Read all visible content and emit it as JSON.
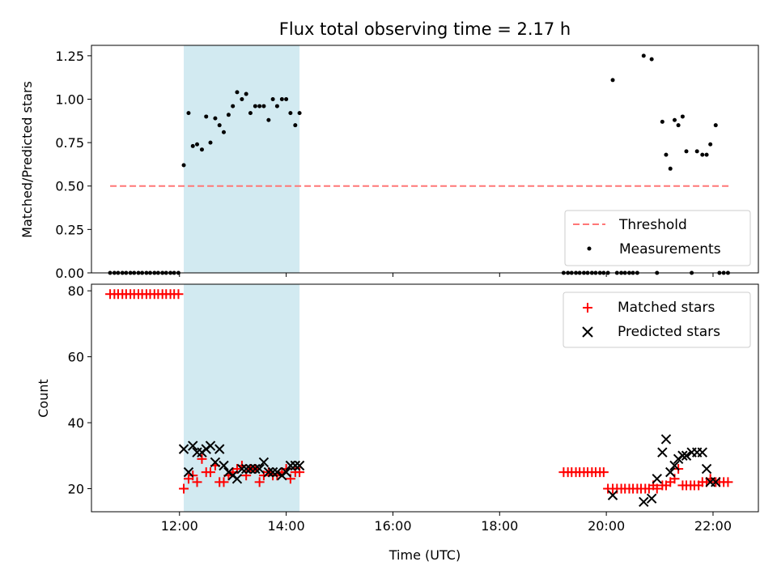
{
  "chart_data": [
    {
      "type": "scatter",
      "title": "Flux total observing time = 2.17 h",
      "xlabel": "",
      "ylabel": "Matched/Predicted stars",
      "xlim": [
        10.35,
        22.85
      ],
      "ylim": [
        0,
        1.31
      ],
      "yticks": [
        0,
        0.25,
        0.5,
        0.75,
        1.0,
        1.25
      ],
      "ytick_labels": [
        "0.00",
        "0.25",
        "0.50",
        "0.75",
        "1.00",
        "1.25"
      ],
      "grid": false,
      "legend_position": "lower right",
      "highlight_span": [
        12.08,
        14.25
      ],
      "highlight_color": "#add8e6",
      "threshold": {
        "name": "Threshold",
        "value": 0.5,
        "x_range": [
          10.7,
          22.3
        ],
        "color": "#ff7777"
      },
      "measurements": {
        "name": "Measurements",
        "color": "#000000",
        "x": [
          10.7,
          10.78,
          10.85,
          10.93,
          11.0,
          11.08,
          11.15,
          11.23,
          11.3,
          11.38,
          11.45,
          11.53,
          11.6,
          11.68,
          11.75,
          11.83,
          11.9,
          11.98,
          12.08,
          12.17,
          12.25,
          12.33,
          12.42,
          12.5,
          12.58,
          12.67,
          12.75,
          12.83,
          12.92,
          13.0,
          13.08,
          13.17,
          13.25,
          13.33,
          13.42,
          13.5,
          13.58,
          13.67,
          13.75,
          13.83,
          13.92,
          14.0,
          14.08,
          14.17,
          14.25,
          19.2,
          19.28,
          19.35,
          19.43,
          19.5,
          19.58,
          19.65,
          19.73,
          19.8,
          19.88,
          19.95,
          20.03,
          20.12,
          20.2,
          20.28,
          20.35,
          20.43,
          20.5,
          20.58,
          20.7,
          20.85,
          20.95,
          21.05,
          21.12,
          21.2,
          21.28,
          21.35,
          21.43,
          21.5,
          21.6,
          21.7,
          21.8,
          21.88,
          21.95,
          22.05,
          22.12,
          22.2,
          22.28
        ],
        "y": [
          0,
          0,
          0,
          0,
          0,
          0,
          0,
          0,
          0,
          0,
          0,
          0,
          0,
          0,
          0,
          0,
          0,
          0,
          0.62,
          0.92,
          0.73,
          0.74,
          0.71,
          0.9,
          0.75,
          0.89,
          0.85,
          0.81,
          0.91,
          0.96,
          1.04,
          1.0,
          1.03,
          0.92,
          0.96,
          0.96,
          0.96,
          0.88,
          1.0,
          0.96,
          1.0,
          1.0,
          0.92,
          0.85,
          0.92,
          0,
          0,
          0,
          0,
          0,
          0,
          0,
          0,
          0,
          0,
          0,
          0,
          1.11,
          0,
          0,
          0,
          0,
          0,
          0,
          1.25,
          1.23,
          0,
          0.87,
          0.68,
          0.6,
          0.88,
          0.85,
          0.9,
          0.7,
          0,
          0.7,
          0.68,
          0.68,
          0.74,
          0.85,
          0,
          0,
          0
        ]
      }
    },
    {
      "type": "scatter",
      "title": "",
      "xlabel": "Time (UTC)",
      "ylabel": "Count",
      "xlim": [
        10.35,
        22.85
      ],
      "ylim": [
        13,
        82
      ],
      "xticks": [
        12,
        14,
        16,
        18,
        20,
        22
      ],
      "xtick_labels": [
        "12:00",
        "14:00",
        "16:00",
        "18:00",
        "20:00",
        "22:00"
      ],
      "yticks": [
        20,
        40,
        60,
        80
      ],
      "ytick_labels": [
        "20",
        "40",
        "60",
        "80"
      ],
      "grid": false,
      "legend_position": "upper right",
      "highlight_span": [
        12.08,
        14.25
      ],
      "series": [
        {
          "name": "Matched stars",
          "marker": "plus",
          "color": "#ff0000",
          "x": [
            10.7,
            10.78,
            10.85,
            10.93,
            11.0,
            11.08,
            11.15,
            11.23,
            11.3,
            11.38,
            11.45,
            11.53,
            11.6,
            11.68,
            11.75,
            11.83,
            11.9,
            11.98,
            12.08,
            12.17,
            12.25,
            12.33,
            12.42,
            12.5,
            12.58,
            12.67,
            12.75,
            12.83,
            12.92,
            13.0,
            13.08,
            13.17,
            13.25,
            13.33,
            13.42,
            13.5,
            13.58,
            13.67,
            13.75,
            13.83,
            13.92,
            14.0,
            14.08,
            14.17,
            14.25,
            19.2,
            19.28,
            19.35,
            19.43,
            19.5,
            19.58,
            19.65,
            19.73,
            19.8,
            19.88,
            19.95,
            20.03,
            20.12,
            20.2,
            20.28,
            20.35,
            20.43,
            20.5,
            20.58,
            20.65,
            20.73,
            20.8,
            20.88,
            20.95,
            21.05,
            21.12,
            21.2,
            21.28,
            21.35,
            21.43,
            21.5,
            21.58,
            21.65,
            21.73,
            21.8,
            21.88,
            21.95,
            22.05,
            22.12,
            22.2,
            22.28
          ],
          "y": [
            79,
            79,
            79,
            79,
            79,
            79,
            79,
            79,
            79,
            79,
            79,
            79,
            79,
            79,
            79,
            79,
            79,
            79,
            20,
            23,
            24,
            22,
            29,
            25,
            25,
            27,
            22,
            22,
            24,
            25,
            26,
            27,
            24,
            26,
            26,
            22,
            24,
            25,
            24,
            24,
            25,
            26,
            23,
            25,
            25,
            25,
            25,
            25,
            25,
            25,
            25,
            25,
            25,
            25,
            25,
            25,
            20,
            20,
            20,
            20,
            20,
            20,
            20,
            20,
            20,
            20,
            20,
            21,
            20,
            21,
            21,
            22,
            23,
            26,
            21,
            21,
            21,
            21,
            21,
            22,
            22,
            23,
            22,
            22,
            22,
            22
          ]
        },
        {
          "name": "Predicted stars",
          "marker": "cross",
          "color": "#000000",
          "x": [
            12.08,
            12.17,
            12.25,
            12.33,
            12.42,
            12.5,
            12.58,
            12.67,
            12.75,
            12.83,
            12.92,
            13.0,
            13.08,
            13.17,
            13.25,
            13.33,
            13.42,
            13.5,
            13.58,
            13.67,
            13.75,
            13.83,
            13.92,
            14.0,
            14.08,
            14.17,
            14.25,
            20.12,
            20.7,
            20.85,
            20.95,
            21.05,
            21.12,
            21.2,
            21.28,
            21.35,
            21.43,
            21.5,
            21.6,
            21.7,
            21.8,
            21.88,
            21.95,
            22.05
          ],
          "y": [
            32,
            25,
            33,
            31,
            31,
            32,
            33,
            28,
            32,
            27,
            25,
            24,
            23,
            26,
            26,
            26,
            26,
            26,
            28,
            25,
            25,
            25,
            24,
            25,
            27,
            27,
            27,
            18,
            16,
            17,
            23,
            31,
            35,
            25,
            27,
            29,
            30,
            30,
            31,
            31,
            31,
            26,
            22,
            22
          ]
        }
      ]
    }
  ]
}
